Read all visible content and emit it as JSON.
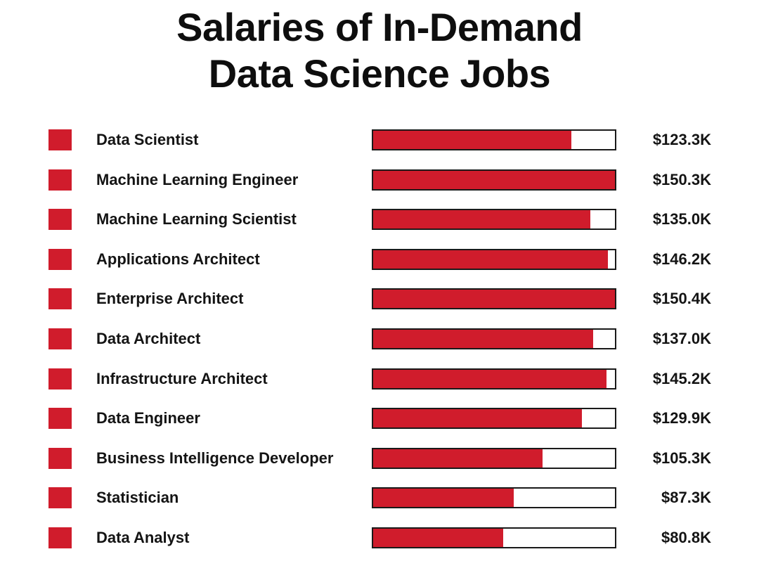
{
  "title_line1": "Salaries of In-Demand",
  "title_line2": "Data Science Jobs",
  "colors": {
    "bar_fill": "#d01c2c",
    "marker": "#d01c2c",
    "track_border": "#1a1a1a"
  },
  "chart_data": {
    "type": "bar",
    "orientation": "horizontal",
    "title": "Salaries of In-Demand Data Science Jobs",
    "xlim": [
      0,
      150.4
    ],
    "grid": false,
    "categories": [
      "Data Scientist",
      "Machine Learning Engineer",
      "Machine Learning Scientist",
      "Applications Architect",
      "Enterprise Architect",
      "Data Architect",
      "Infrastructure Architect",
      "Data Engineer",
      "Business Intelligence Developer",
      "Statistician",
      "Data Analyst"
    ],
    "values": [
      123.3,
      150.3,
      135.0,
      146.2,
      150.4,
      137.0,
      145.2,
      129.9,
      105.3,
      87.3,
      80.8
    ],
    "value_labels": [
      "$123.3K",
      "$150.3K",
      "$135.0K",
      "$146.2K",
      "$150.4K",
      "$137.0K",
      "$145.2K",
      "$129.9K",
      "$105.3K",
      "$87.3K",
      "$80.8K"
    ]
  }
}
